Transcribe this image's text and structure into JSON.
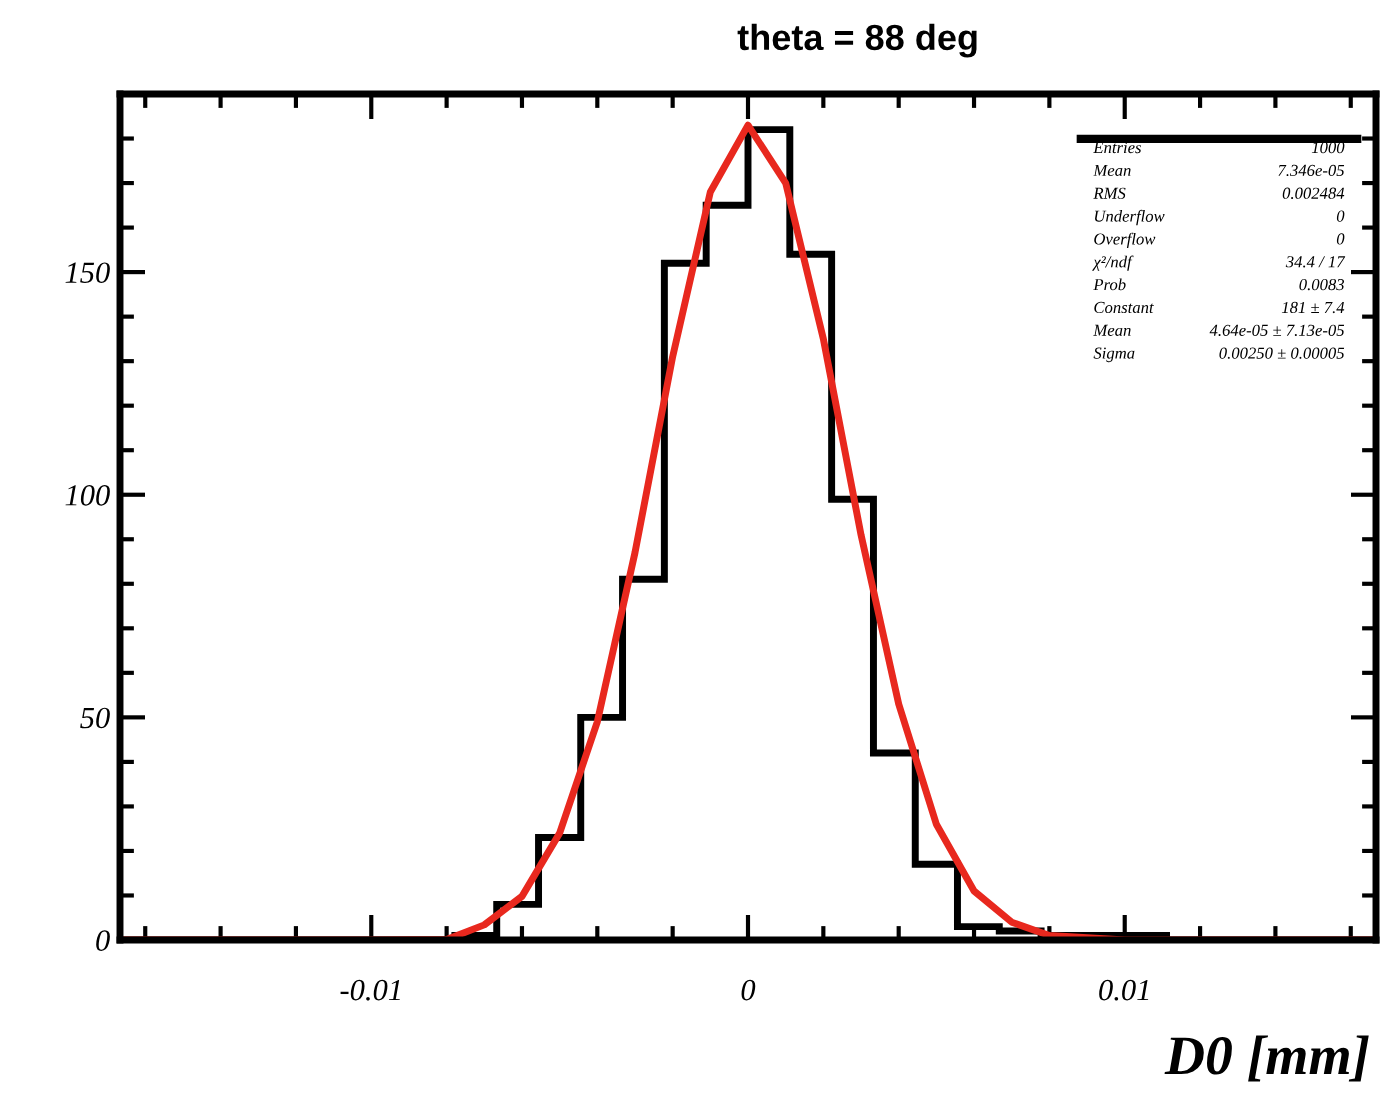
{
  "chart_data": {
    "type": "histogram",
    "title": "theta = 88 deg",
    "xlabel": "D0 [mm]",
    "bins": [
      -0.01667,
      -0.01556,
      -0.01444,
      -0.01333,
      -0.01222,
      -0.01111,
      -0.01,
      -0.00889,
      -0.00778,
      -0.00667,
      -0.00556,
      -0.00444,
      -0.00333,
      -0.00222,
      -0.00111,
      0,
      0.00111,
      0.00222,
      0.00333,
      0.00444,
      0.00556,
      0.00667,
      0.00778,
      0.00889,
      0.01,
      0.01111,
      0.01222,
      0.01333,
      0.01444,
      0.01556,
      0.01667
    ],
    "values": [
      0,
      0,
      0,
      0,
      0,
      0,
      0,
      0,
      1,
      8,
      23,
      50,
      81,
      152,
      165,
      182,
      154,
      99,
      42,
      17,
      3,
      2,
      1,
      1,
      1,
      0,
      0,
      0,
      0,
      0
    ],
    "color": "#000000",
    "series": [
      {
        "type": "line",
        "color": "#e8281e",
        "x": [
          -0.0166,
          -0.01,
          -0.008,
          -0.007,
          -0.006,
          -0.005,
          -0.004,
          -0.003,
          -0.002,
          -0.001,
          0,
          0.001,
          0.002,
          0.003,
          0.004,
          0.005,
          0.006,
          0.007,
          0.008,
          0.01,
          0.0166
        ],
        "values": [
          0,
          0,
          0.1,
          3.4,
          9.8,
          24,
          49,
          87,
          131,
          168,
          183,
          170,
          135,
          91,
          53,
          26,
          11,
          4,
          1,
          0,
          0
        ]
      }
    ],
    "xlim": [
      -0.01667,
      0.01667
    ],
    "ylim": [
      0,
      190
    ],
    "xticks": [
      -0.01,
      0,
      0.01
    ],
    "yticks": [
      0,
      50,
      100,
      150
    ],
    "annotations": [
      "Entries 1000",
      "Mean 7.346e-05",
      "RMS 0.002484",
      "Underflow 0",
      "Overflow 0",
      "χ²/ndf 34.4 / 17",
      "Prob 0.0083",
      "Constant 181 ± 7.4",
      "Mean 4.64e-05 ± 7.13e-05",
      "Sigma 0.00250 ± 0.00005"
    ],
    "grid": false
  }
}
